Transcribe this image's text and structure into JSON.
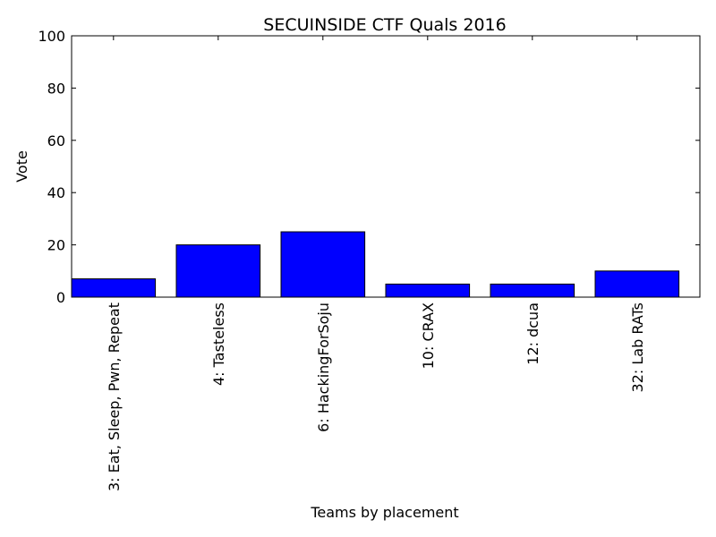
{
  "chart_data": {
    "type": "bar",
    "title": "SECUINSIDE CTF Quals 2016",
    "xlabel": "Teams by placement",
    "ylabel": "Vote",
    "ylim": [
      0,
      100
    ],
    "yticks": [
      "0",
      "20",
      "40",
      "60",
      "80",
      "100"
    ],
    "categories": [
      "3: Eat, Sleep, Pwn, Repeat",
      "4: Tasteless",
      "6: HackingForSoju",
      "10: CRAX",
      "12: dcua",
      "32: Lab RATs"
    ],
    "values": [
      7,
      20,
      25,
      5,
      5,
      10
    ],
    "bar_color": "#0000ff",
    "edge_color": "#000000",
    "grid": false,
    "legend": "none"
  }
}
